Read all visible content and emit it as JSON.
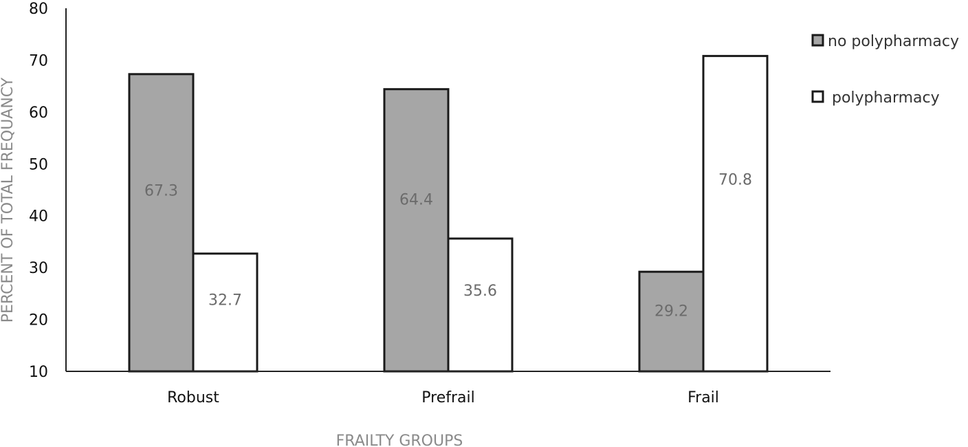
{
  "chart_data": {
    "type": "bar",
    "title": "",
    "xlabel": "FRAILTY GROUPS",
    "ylabel": "PERCENT OF TOTAL FREQUANCY",
    "categories": [
      "Robust",
      "Prefrail",
      "Frail"
    ],
    "series": [
      {
        "name": "no polypharmacy",
        "values": [
          67.3,
          64.4,
          29.2
        ],
        "labels": [
          "67.3",
          "64.4",
          "29.2"
        ],
        "color": "#a6a6a6"
      },
      {
        "name": "polypharmacy",
        "values": [
          32.7,
          35.6,
          70.8
        ],
        "labels": [
          "32.7",
          "35.6",
          "70.8"
        ],
        "color": "#ffffff"
      }
    ],
    "ylim": [
      10,
      80
    ],
    "yticks": [
      "10",
      "20",
      "30",
      "40",
      "50",
      "60",
      "70",
      "80"
    ],
    "grid": false,
    "legend_position": "top-right",
    "bar_edge_color": "#1a1a1a"
  }
}
